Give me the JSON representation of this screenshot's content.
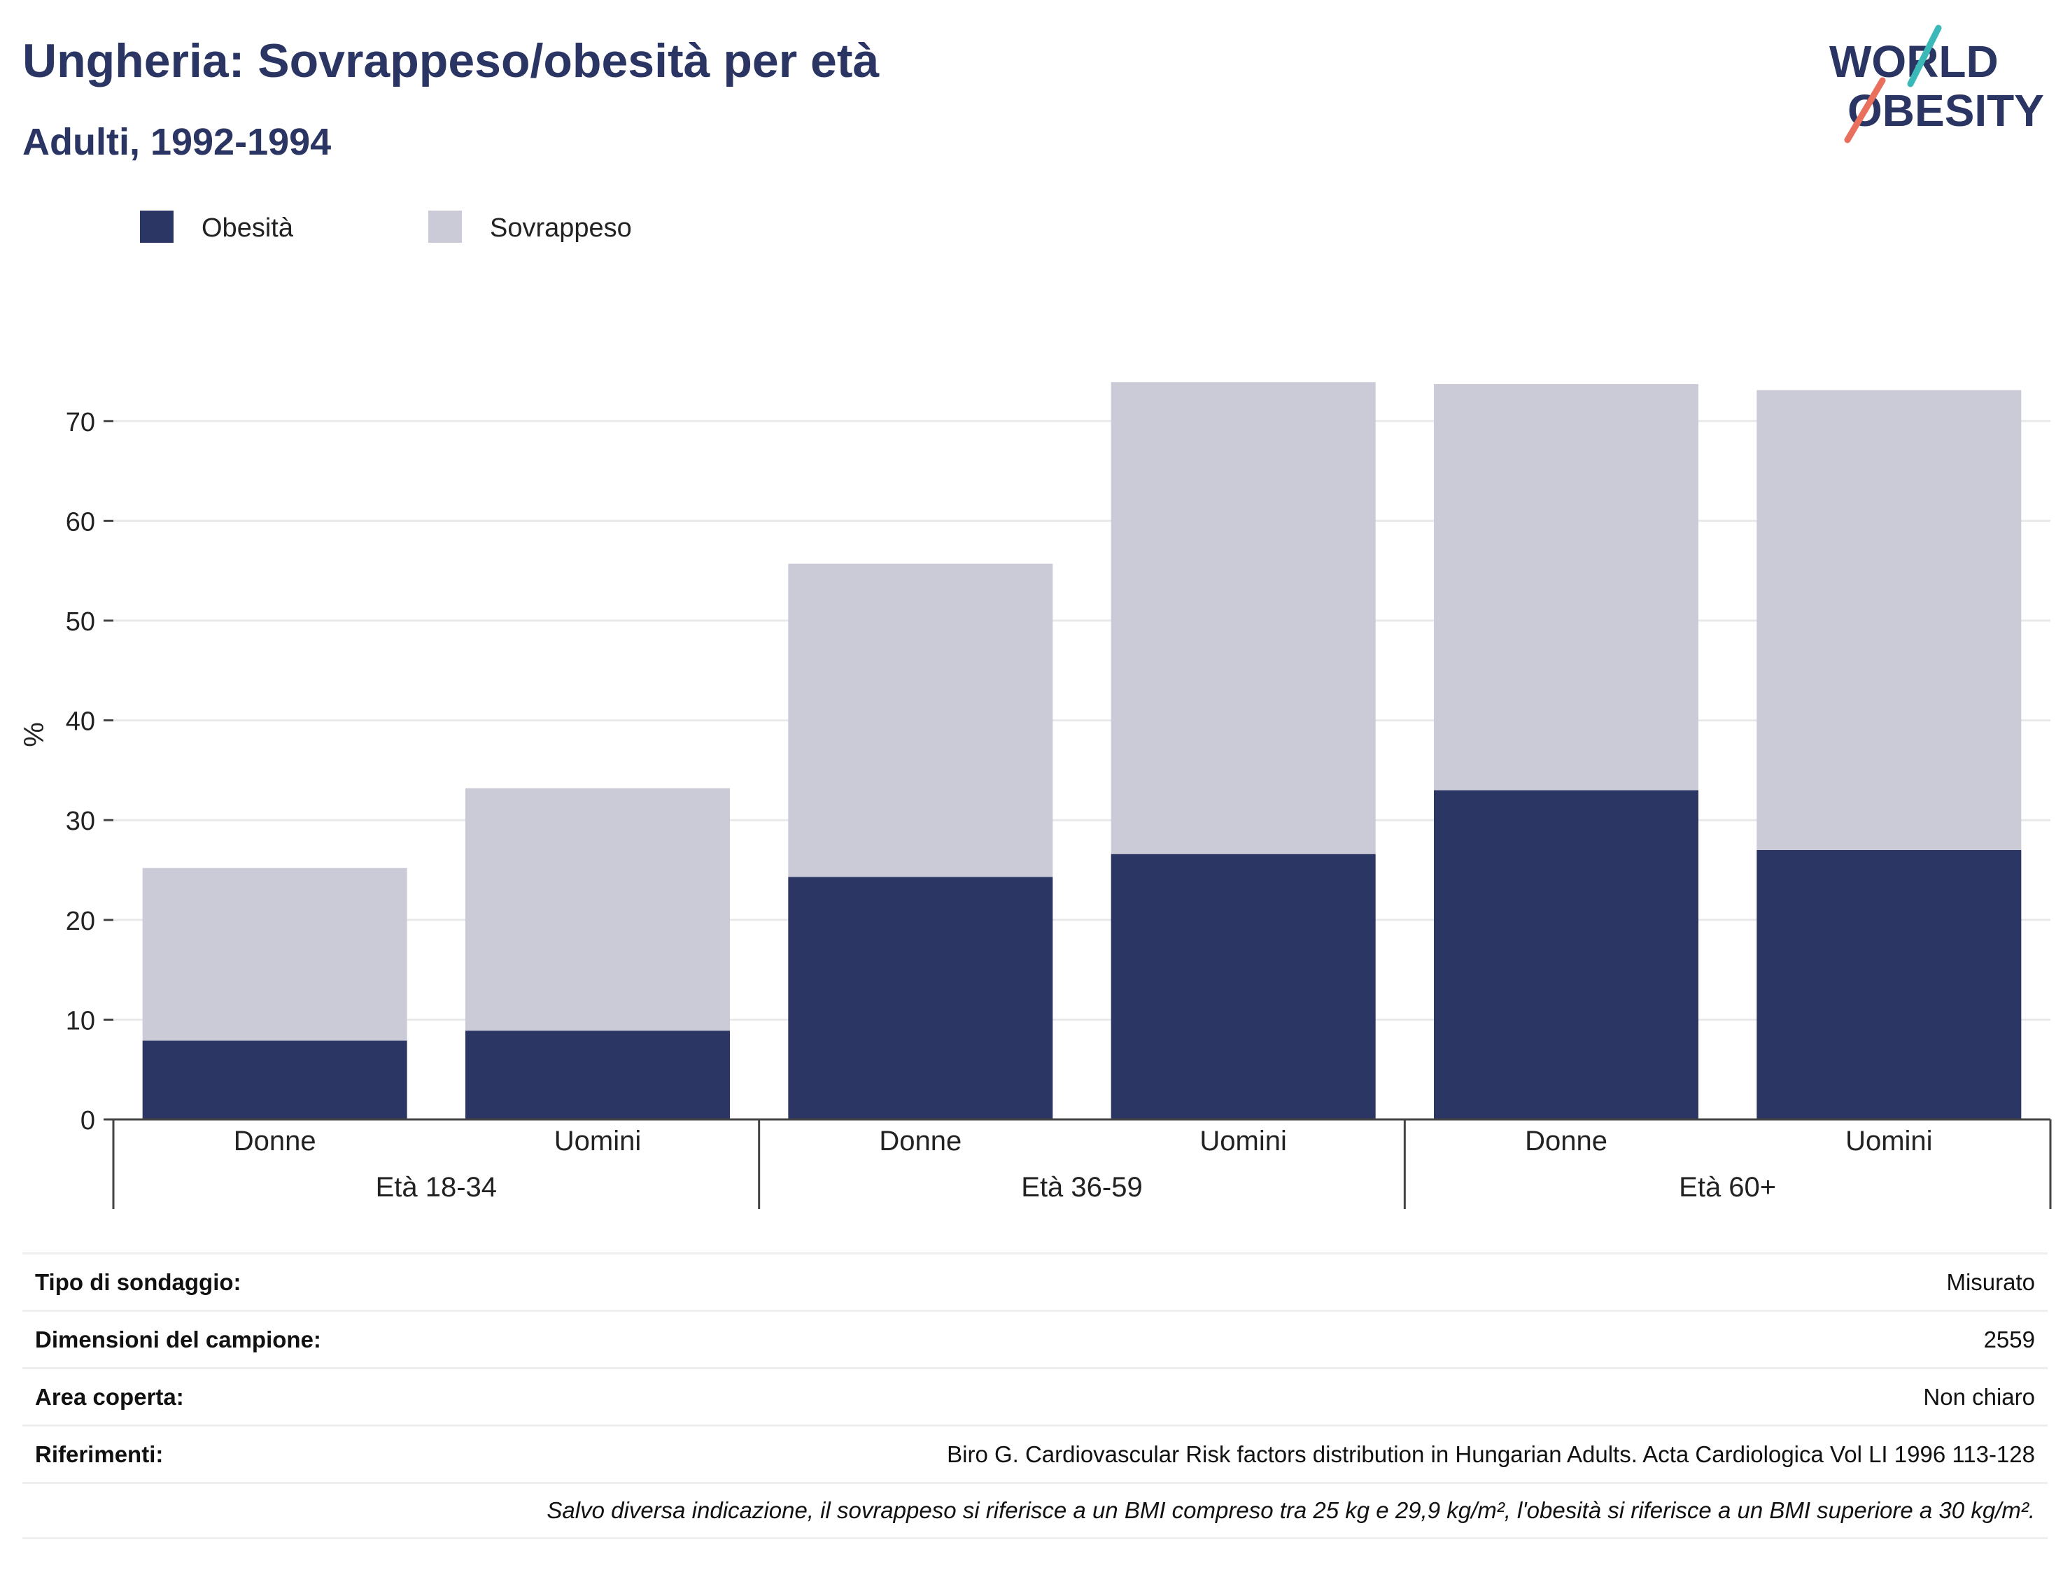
{
  "header": {
    "title": "Ungheria: Sovrappeso/obesità per età",
    "subtitle": "Adulti, 1992-1994",
    "logo_line1": "WORLD",
    "logo_line2": "OBESITY"
  },
  "colors": {
    "obesity": "#2b3664",
    "overweight": "#cacbd7",
    "text": "#2a3563",
    "grid": "#e9e9ec",
    "logo_teal": "#3bb8b8",
    "logo_coral": "#e8705d"
  },
  "chart_data": {
    "type": "bar",
    "stacked": true,
    "ylabel": "%",
    "ylim": [
      0,
      75
    ],
    "yticks": [
      0,
      10,
      20,
      30,
      40,
      50,
      60,
      70
    ],
    "grid": true,
    "legend_position": "top-left",
    "groups": [
      "Età 18-34",
      "Età 36-59",
      "Età 60+"
    ],
    "categories": [
      "Donne",
      "Uomini",
      "Donne",
      "Uomini",
      "Donne",
      "Uomini"
    ],
    "series": [
      {
        "name": "Obesità",
        "values": [
          7.9,
          8.9,
          24.3,
          26.6,
          33.0,
          27.0
        ]
      },
      {
        "name": "Sovrappeso",
        "values": [
          17.3,
          24.3,
          31.4,
          47.3,
          40.7,
          46.1
        ]
      }
    ]
  },
  "info": [
    {
      "label": "Tipo di sondaggio:",
      "value": "Misurato"
    },
    {
      "label": "Dimensioni del campione:",
      "value": "2559"
    },
    {
      "label": "Area coperta:",
      "value": "Non chiaro"
    },
    {
      "label": "Riferimenti:",
      "value": "Biro G. Cardiovascular Risk factors distribution in Hungarian Adults. Acta Cardiologica Vol LI 1996 113-128"
    }
  ],
  "note": "Salvo diversa indicazione, il sovrappeso si riferisce a un BMI compreso tra 25 kg e 29,9 kg/m², l'obesità si riferisce a un BMI superiore a 30 kg/m²."
}
